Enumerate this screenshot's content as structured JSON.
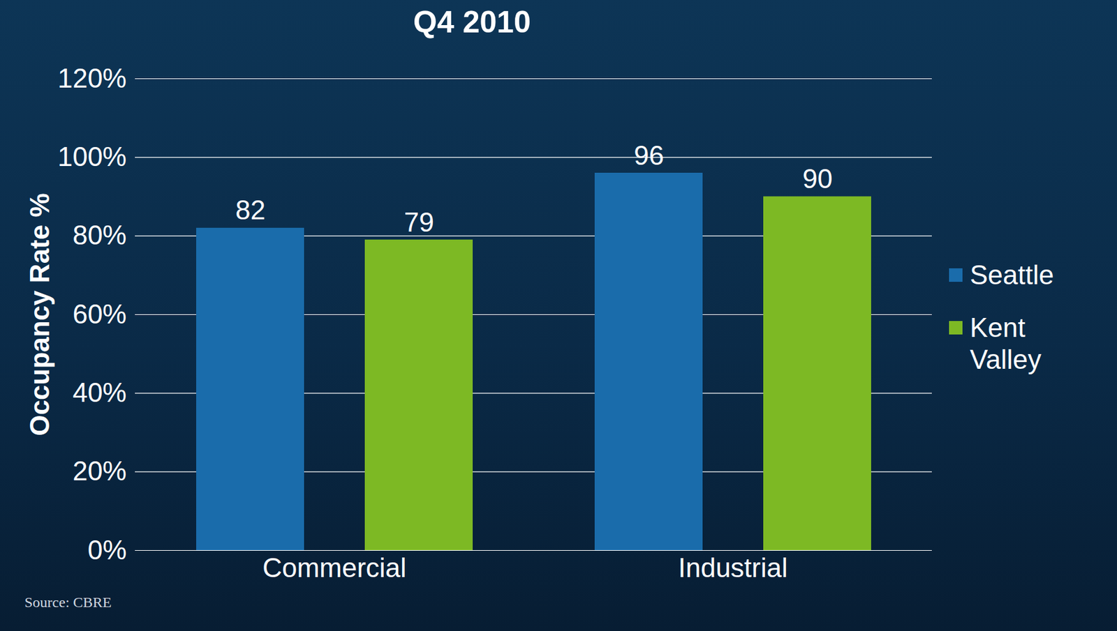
{
  "chart_data": {
    "type": "bar",
    "title": "Q4 2010",
    "y_label": "Occupancy Rate %",
    "source": "Source: CBRE",
    "categories": [
      "Commercial",
      "Industrial"
    ],
    "series": [
      {
        "name": "Seattle",
        "color": "#1a6cab",
        "values": [
          82,
          96
        ]
      },
      {
        "name": "Kent Valley",
        "color": "#7db924",
        "values": [
          79,
          90
        ]
      }
    ],
    "ylim": [
      0,
      120
    ],
    "yticks": [
      {
        "value": 0,
        "label": "0%"
      },
      {
        "value": 20,
        "label": "20%"
      },
      {
        "value": 40,
        "label": "40%"
      },
      {
        "value": 60,
        "label": "60%"
      },
      {
        "value": 80,
        "label": "80%"
      },
      {
        "value": 100,
        "label": "100%"
      },
      {
        "value": 120,
        "label": "120%"
      }
    ],
    "grid": true,
    "data_labels": true,
    "legend": "right"
  }
}
